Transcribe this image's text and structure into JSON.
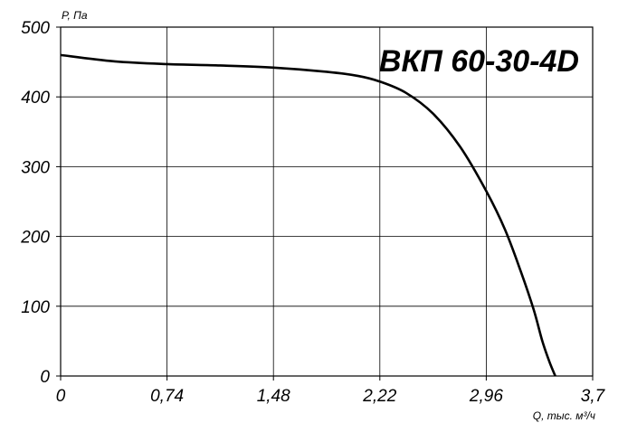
{
  "chart_data": {
    "type": "line",
    "title": "ВКП 60-30-4D",
    "xlabel": "Q, тыс. м³/ч",
    "ylabel": "P, Па",
    "xlim": [
      0,
      3.7
    ],
    "ylim": [
      0,
      500
    ],
    "x_ticks": [
      "0",
      "0,74",
      "1,48",
      "2,22",
      "2,96",
      "3,7"
    ],
    "y_ticks": [
      "0",
      "100",
      "200",
      "300",
      "400",
      "500"
    ],
    "grid": true,
    "series": [
      {
        "x": [
          0,
          0.37,
          0.74,
          1.11,
          1.48,
          1.85,
          2.07,
          2.22,
          2.4,
          2.59,
          2.78,
          2.96,
          3.09,
          3.2,
          3.29,
          3.35,
          3.4,
          3.44
        ],
        "y": [
          460,
          451,
          447,
          445,
          442,
          436,
          430,
          422,
          406,
          376,
          328,
          265,
          210,
          150,
          95,
          50,
          20,
          0
        ]
      }
    ]
  }
}
